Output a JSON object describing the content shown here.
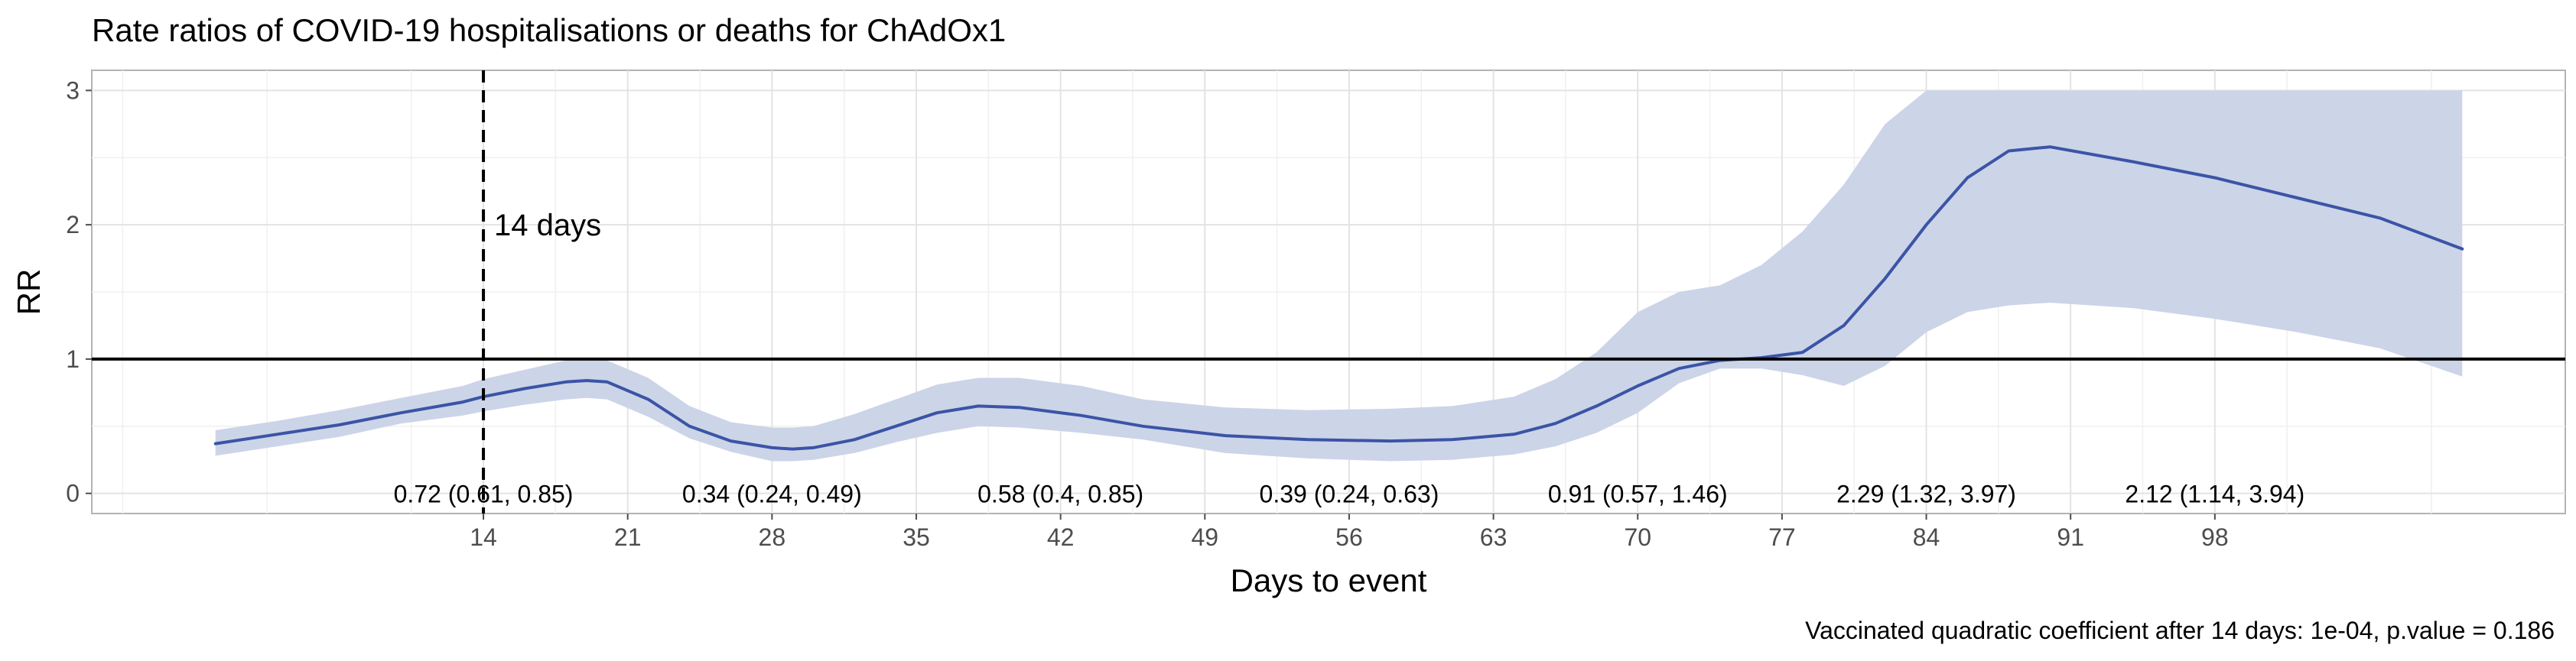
{
  "chart_data": {
    "type": "line",
    "title": "Rate ratios of COVID-19 hospitalisations or deaths for ChAdOx1",
    "xlabel": "Days to event",
    "ylabel": "RR",
    "caption": "Vaccinated quadratic coefficient after 14 days: 1e-04, p.value = 0.186",
    "xlim": [
      -5,
      115
    ],
    "ylim": [
      -0.15,
      3.15
    ],
    "x_ticks": [
      14,
      21,
      28,
      35,
      42,
      49,
      56,
      63,
      70,
      77,
      84,
      91,
      98
    ],
    "y_ticks": [
      0,
      1,
      2,
      3
    ],
    "grid": true,
    "reference_line": {
      "y": 1
    },
    "vertical_line": {
      "x": 14,
      "label": "14 days"
    },
    "series": [
      {
        "color": "#3b54a6",
        "band_color": "#ccd4e8",
        "x": [
          1,
          4,
          7,
          10,
          13,
          14,
          16,
          18,
          19,
          20,
          22,
          24,
          26,
          28,
          29,
          30,
          32,
          34,
          36,
          38,
          40,
          43,
          46,
          50,
          54,
          58,
          61,
          64,
          66,
          68,
          70,
          72,
          74,
          76,
          78,
          80,
          82,
          84,
          86,
          88,
          90,
          94,
          98,
          102,
          106,
          110
        ],
        "y": [
          0.37,
          0.44,
          0.51,
          0.6,
          0.68,
          0.72,
          0.78,
          0.83,
          0.84,
          0.83,
          0.7,
          0.5,
          0.39,
          0.34,
          0.33,
          0.34,
          0.4,
          0.5,
          0.6,
          0.65,
          0.64,
          0.58,
          0.5,
          0.43,
          0.4,
          0.39,
          0.4,
          0.44,
          0.52,
          0.65,
          0.8,
          0.93,
          0.99,
          1.01,
          1.05,
          1.25,
          1.6,
          2.0,
          2.35,
          2.55,
          2.58,
          2.47,
          2.35,
          2.2,
          2.05,
          1.82
        ],
        "lower": [
          0.28,
          0.35,
          0.42,
          0.52,
          0.58,
          0.61,
          0.66,
          0.7,
          0.71,
          0.7,
          0.57,
          0.41,
          0.31,
          0.24,
          0.24,
          0.25,
          0.3,
          0.38,
          0.45,
          0.5,
          0.49,
          0.45,
          0.4,
          0.3,
          0.26,
          0.24,
          0.25,
          0.29,
          0.35,
          0.45,
          0.6,
          0.82,
          0.93,
          0.93,
          0.88,
          0.8,
          0.95,
          1.2,
          1.35,
          1.4,
          1.42,
          1.38,
          1.3,
          1.2,
          1.08,
          0.87
        ],
        "upper": [
          0.47,
          0.54,
          0.62,
          0.71,
          0.8,
          0.85,
          0.92,
          0.99,
          1.0,
          0.99,
          0.86,
          0.65,
          0.53,
          0.49,
          0.49,
          0.5,
          0.59,
          0.7,
          0.81,
          0.86,
          0.86,
          0.8,
          0.7,
          0.64,
          0.62,
          0.63,
          0.65,
          0.72,
          0.85,
          1.05,
          1.35,
          1.5,
          1.55,
          1.7,
          1.95,
          2.3,
          2.75,
          3.0,
          3.0,
          3.0,
          3.0,
          3.0,
          3.0,
          3.0,
          3.0,
          3.0
        ]
      }
    ],
    "annotations": [
      {
        "x": 14,
        "text": "0.72 (0.61, 0.85)"
      },
      {
        "x": 28,
        "text": "0.34 (0.24, 0.49)"
      },
      {
        "x": 42,
        "text": "0.58 (0.4, 0.85)"
      },
      {
        "x": 56,
        "text": "0.39 (0.24, 0.63)"
      },
      {
        "x": 70,
        "text": "0.91 (0.57, 1.46)"
      },
      {
        "x": 84,
        "text": "2.29 (1.32, 3.97)"
      },
      {
        "x": 98,
        "text": "2.12 (1.14, 3.94)"
      }
    ]
  }
}
